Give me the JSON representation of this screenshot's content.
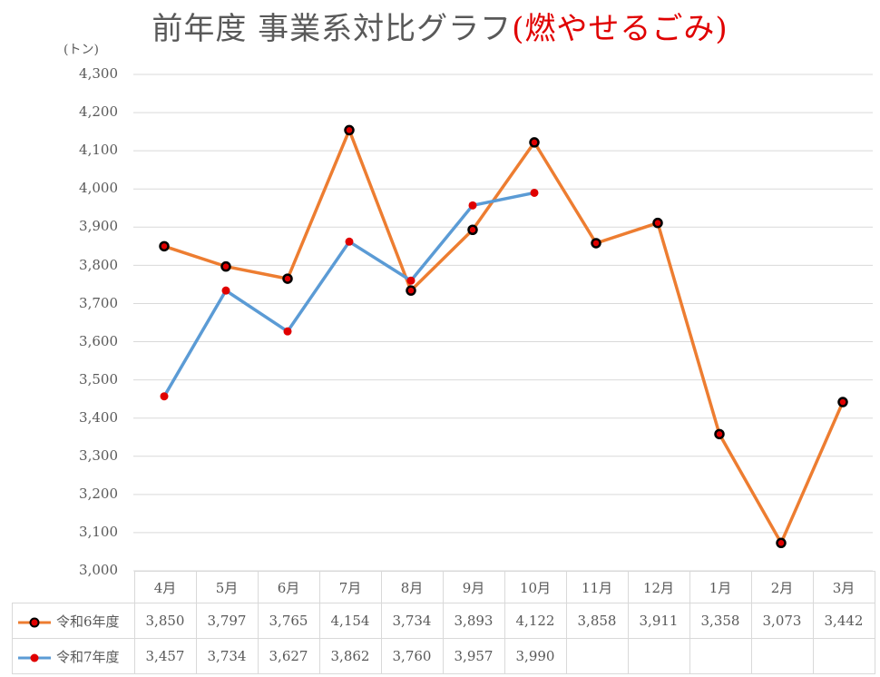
{
  "title": {
    "main": "前年度 事業系対比グラフ",
    "accent": "(燃やせるごみ)"
  },
  "unit_label": "(トン)",
  "colors": {
    "series1_line": "#ed7d31",
    "series2_line": "#5b9bd5",
    "marker_fill": "#e00000",
    "marker_border": "#000000",
    "grid": "#d9d9d9",
    "text": "#595959",
    "accent": "#e00000"
  },
  "y_ticks": [
    "4,300",
    "4,200",
    "4,100",
    "4,000",
    "3,900",
    "3,800",
    "3,700",
    "3,600",
    "3,500",
    "3,400",
    "3,300",
    "3,200",
    "3,100",
    "3,000"
  ],
  "table": {
    "months": [
      "4月",
      "5月",
      "6月",
      "7月",
      "8月",
      "9月",
      "10月",
      "11月",
      "12月",
      "1月",
      "2月",
      "3月"
    ],
    "rows": [
      {
        "label": "令和6年度",
        "values": [
          "3,850",
          "3,797",
          "3,765",
          "4,154",
          "3,734",
          "3,893",
          "4,122",
          "3,858",
          "3,911",
          "3,358",
          "3,073",
          "3,442"
        ]
      },
      {
        "label": "令和7年度",
        "values": [
          "3,457",
          "3,734",
          "3,627",
          "3,862",
          "3,760",
          "3,957",
          "3,990",
          "",
          "",
          "",
          "",
          ""
        ]
      }
    ]
  },
  "chart_data": {
    "type": "line",
    "title": "前年度 事業系対比グラフ(燃やせるごみ)",
    "xlabel": "",
    "ylabel": "(トン)",
    "ylim": [
      3000,
      4300
    ],
    "ytick_step": 100,
    "grid": true,
    "legend_position": "data-table",
    "categories": [
      "4月",
      "5月",
      "6月",
      "7月",
      "8月",
      "9月",
      "10月",
      "11月",
      "12月",
      "1月",
      "2月",
      "3月"
    ],
    "series": [
      {
        "name": "令和6年度",
        "color": "#ed7d31",
        "values": [
          3850,
          3797,
          3765,
          4154,
          3734,
          3893,
          4122,
          3858,
          3911,
          3358,
          3073,
          3442
        ]
      },
      {
        "name": "令和7年度",
        "color": "#5b9bd5",
        "values": [
          3457,
          3734,
          3627,
          3862,
          3760,
          3957,
          3990,
          null,
          null,
          null,
          null,
          null
        ]
      }
    ]
  }
}
